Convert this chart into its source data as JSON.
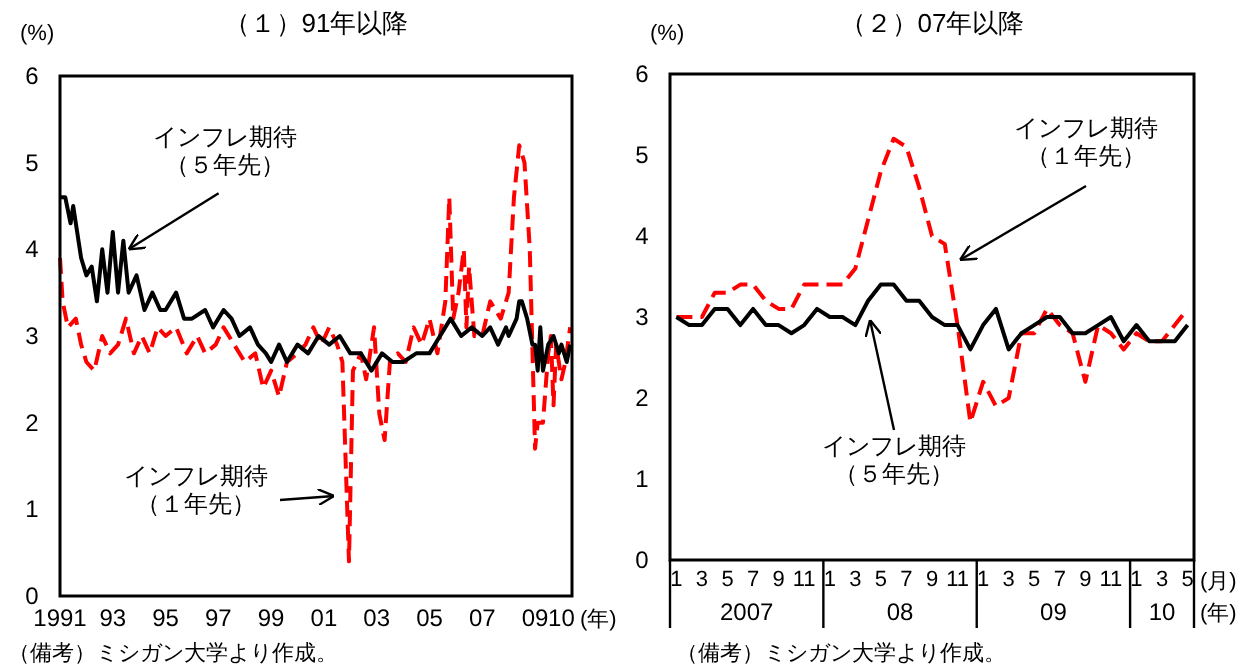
{
  "chart_data": [
    {
      "type": "line",
      "title": "（１）91年以降",
      "ylabel": "(%)",
      "xlabel": "(年)",
      "xlim": [
        1991,
        2010.4
      ],
      "ylim": [
        0,
        6
      ],
      "yticks": [
        0,
        1,
        2,
        3,
        4,
        5,
        6
      ],
      "xticks": [
        {
          "value": 1991,
          "label": "1991"
        },
        {
          "value": 1993,
          "label": "93"
        },
        {
          "value": 1995,
          "label": "95"
        },
        {
          "value": 1997,
          "label": "97"
        },
        {
          "value": 1999,
          "label": "99"
        },
        {
          "value": 2001,
          "label": "01"
        },
        {
          "value": 2003,
          "label": "03"
        },
        {
          "value": 2005,
          "label": "05"
        },
        {
          "value": 2007,
          "label": "07"
        },
        {
          "value": 2009,
          "label": "09"
        },
        {
          "value": 2010,
          "label": "10"
        }
      ],
      "grid": false,
      "series": [
        {
          "color": "#ff0000",
          "line_style": "dashed",
          "x": [
            1991.0,
            1991.1,
            1991.3,
            1991.6,
            1991.8,
            1992.0,
            1992.3,
            1992.6,
            1992.9,
            1993.2,
            1993.5,
            1993.8,
            1994.1,
            1994.4,
            1994.7,
            1995.0,
            1995.4,
            1995.8,
            1996.2,
            1996.5,
            1996.9,
            1997.2,
            1997.6,
            1998.0,
            1998.4,
            1998.7,
            1999.0,
            1999.3,
            1999.6,
            2000.0,
            2000.3,
            2000.6,
            2000.9,
            2001.2,
            2001.5,
            2001.7,
            2001.85,
            2001.95,
            2002.1,
            2002.4,
            2002.6,
            2002.9,
            2003.1,
            2003.3,
            2003.5,
            2003.8,
            2004.1,
            2004.4,
            2004.7,
            2005.0,
            2005.3,
            2005.6,
            2005.75,
            2005.9,
            2006.1,
            2006.3,
            2006.4,
            2006.5,
            2006.7,
            2007.0,
            2007.3,
            2007.7,
            2008.0,
            2008.2,
            2008.4,
            2008.6,
            2008.8,
            2009.0,
            2009.1,
            2009.3,
            2009.5,
            2009.6,
            2009.7,
            2009.8,
            2010.0,
            2010.15,
            2010.33
          ],
          "values": [
            3.9,
            3.4,
            3.1,
            3.2,
            2.9,
            2.7,
            2.6,
            3.0,
            2.8,
            2.9,
            3.2,
            2.8,
            3.0,
            2.8,
            3.1,
            3.0,
            3.1,
            2.8,
            3.0,
            2.8,
            2.9,
            3.1,
            2.9,
            2.7,
            2.8,
            2.4,
            2.6,
            2.3,
            2.7,
            2.8,
            2.9,
            3.1,
            2.9,
            3.1,
            2.9,
            2.7,
            1.3,
            0.4,
            2.6,
            2.8,
            2.5,
            3.1,
            2.1,
            1.8,
            2.7,
            2.8,
            2.7,
            3.1,
            2.9,
            3.2,
            2.8,
            3.4,
            4.6,
            3.2,
            3.5,
            4.0,
            3.1,
            3.8,
            3.0,
            3.0,
            3.4,
            3.2,
            3.5,
            4.6,
            5.2,
            5.0,
            4.0,
            1.7,
            2.0,
            2.0,
            2.8,
            3.0,
            2.2,
            2.9,
            2.5,
            2.7,
            3.1
          ]
        },
        {
          "color": "#000000",
          "line_style": "solid",
          "x": [
            1991.0,
            1991.2,
            1991.4,
            1991.5,
            1991.8,
            1992.0,
            1992.2,
            1992.4,
            1992.6,
            1992.8,
            1993.0,
            1993.2,
            1993.4,
            1993.6,
            1993.9,
            1994.2,
            1994.5,
            1994.8,
            1995.0,
            1995.4,
            1995.7,
            1996.0,
            1996.5,
            1996.8,
            1997.2,
            1997.5,
            1997.8,
            1998.2,
            1998.5,
            1998.8,
            1999.0,
            1999.3,
            1999.6,
            2000.0,
            2000.4,
            2000.8,
            2001.2,
            2001.6,
            2002.0,
            2002.4,
            2002.8,
            2003.2,
            2003.6,
            2004.0,
            2004.5,
            2005.0,
            2005.4,
            2005.8,
            2006.2,
            2006.6,
            2007.0,
            2007.3,
            2007.6,
            2007.9,
            2008.0,
            2008.3,
            2008.4,
            2008.5,
            2008.7,
            2008.9,
            2009.0,
            2009.1,
            2009.2,
            2009.3,
            2009.5,
            2009.7,
            2009.9,
            2010.0,
            2010.2,
            2010.33
          ],
          "values": [
            4.6,
            4.6,
            4.3,
            4.5,
            3.9,
            3.7,
            3.8,
            3.4,
            4.0,
            3.5,
            4.2,
            3.5,
            4.1,
            3.5,
            3.7,
            3.3,
            3.5,
            3.3,
            3.3,
            3.5,
            3.2,
            3.2,
            3.3,
            3.1,
            3.3,
            3.2,
            3.0,
            3.1,
            2.9,
            2.8,
            2.7,
            2.9,
            2.7,
            2.9,
            2.8,
            3.0,
            2.9,
            3.0,
            2.8,
            2.8,
            2.6,
            2.8,
            2.7,
            2.7,
            2.8,
            2.8,
            3.0,
            3.2,
            3.0,
            3.1,
            3.0,
            3.1,
            2.9,
            3.1,
            3.0,
            3.2,
            3.4,
            3.4,
            3.2,
            2.9,
            2.9,
            2.6,
            3.1,
            2.6,
            2.9,
            3.0,
            2.8,
            2.9,
            2.7,
            2.9
          ]
        }
      ],
      "annotations": [
        {
          "text": "インフレ期待（５年先）",
          "x": 1993.6,
          "y": 4.0
        },
        "インフレ期待（１年先）",
        "（備考）ミシガン大学より作成。"
      ]
    },
    {
      "type": "line",
      "title": "（２）07年以降",
      "ylabel": "(%)",
      "xlabel": "(月)\n(年)",
      "ylim": [
        0,
        6
      ],
      "yticks": [
        0,
        1,
        2,
        3,
        4,
        5,
        6
      ],
      "grid": false,
      "categories": [
        "1",
        null,
        "3",
        null,
        "5",
        null,
        "7",
        null,
        "9",
        null,
        "11",
        null,
        "1",
        null,
        "3",
        null,
        "5",
        null,
        "7",
        null,
        "9",
        null,
        "11",
        null,
        "1",
        null,
        "3",
        null,
        "5",
        null,
        "7",
        null,
        "9",
        null,
        "11",
        null,
        "1",
        null,
        "3",
        null,
        "5"
      ],
      "series": [
        {
          "color": "#ff0000",
          "line_style": "dashed",
          "values": [
            3.0,
            3.0,
            3.0,
            3.3,
            3.3,
            3.4,
            3.4,
            3.2,
            3.1,
            3.1,
            3.4,
            3.4,
            3.4,
            3.4,
            3.6,
            4.2,
            4.8,
            5.2,
            5.1,
            4.6,
            4.0,
            3.9,
            2.9,
            1.7,
            2.2,
            1.9,
            2.0,
            2.8,
            2.8,
            3.1,
            2.9,
            2.8,
            2.2,
            2.9,
            2.8,
            2.6,
            2.8,
            2.7,
            2.7,
            2.9,
            3.1
          ]
        },
        {
          "color": "#000000",
          "line_style": "solid",
          "values": [
            3.0,
            2.9,
            2.9,
            3.1,
            3.1,
            2.9,
            3.1,
            2.9,
            2.9,
            2.8,
            2.9,
            3.1,
            3.0,
            3.0,
            2.9,
            3.2,
            3.4,
            3.4,
            3.2,
            3.2,
            3.0,
            2.9,
            2.9,
            2.6,
            2.9,
            3.1,
            2.6,
            2.8,
            2.9,
            3.0,
            3.0,
            2.8,
            2.8,
            2.9,
            3.0,
            2.7,
            2.9,
            2.7,
            2.7,
            2.7,
            2.9
          ]
        }
      ],
      "annotations": [
        "インフレ期待（１年先）",
        "インフレ期待（５年先）",
        "2007",
        "08",
        "09",
        "10",
        "（備考）ミシガン大学より作成。"
      ]
    }
  ]
}
